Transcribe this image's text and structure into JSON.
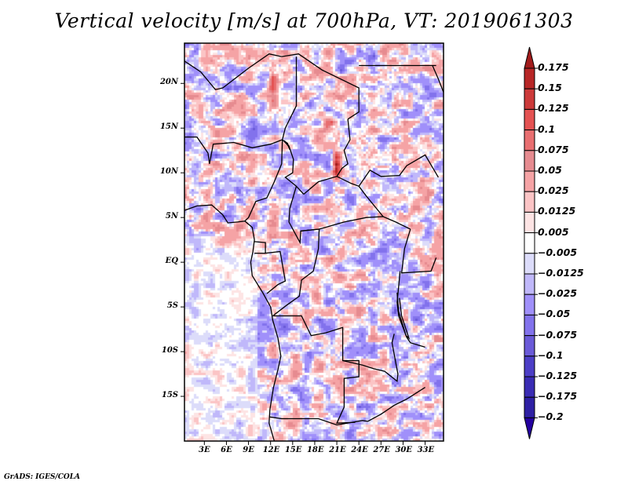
{
  "chart_data": {
    "type": "heatmap",
    "title": "Vertical velocity [m/s] at 700hPa, VT: 2019061303",
    "variable": "Vertical velocity",
    "units": "m/s",
    "level": "700hPa",
    "valid_time": "2019061303",
    "xlabel": "",
    "ylabel": "",
    "x_ticks": [
      "3E",
      "6E",
      "9E",
      "12E",
      "15E",
      "18E",
      "21E",
      "24E",
      "27E",
      "30E",
      "33E"
    ],
    "x_tick_values": [
      3,
      6,
      9,
      12,
      15,
      18,
      21,
      24,
      27,
      30,
      33
    ],
    "y_ticks": [
      "20N",
      "15N",
      "10N",
      "5N",
      "EQ",
      "5S",
      "10S",
      "15S"
    ],
    "y_tick_values": [
      20,
      15,
      10,
      5,
      0,
      -5,
      -10,
      -15
    ],
    "xlim": [
      0.3,
      35.5
    ],
    "ylim": [
      -20,
      24.5
    ],
    "colorbar": {
      "placement": "right",
      "orientation": "vertical",
      "extend": "both",
      "levels": [
        0.175,
        0.15,
        0.125,
        0.1,
        0.075,
        0.05,
        0.025,
        0.0125,
        0.005,
        -0.005,
        -0.0125,
        -0.025,
        -0.05,
        -0.075,
        -0.1,
        -0.125,
        -0.175,
        -0.2
      ],
      "level_labels": [
        "0.175",
        "0.15",
        "0.125",
        "0.1",
        "0.075",
        "0.05",
        "0.025",
        "0.0125",
        "0.005",
        "−0.005",
        "−0.0125",
        "−0.025",
        "−0.05",
        "−0.075",
        "−0.1",
        "−0.125",
        "−0.175",
        "−0.2"
      ],
      "colors": [
        "#a21c1c",
        "#b72626",
        "#cc3a3a",
        "#e45252",
        "#e86e70",
        "#e68b90",
        "#f5a3a5",
        "#fbc4c5",
        "#fde4e4",
        "#ffffff",
        "#dcdcfa",
        "#c0b8fa",
        "#a090fa",
        "#8272ec",
        "#6a5ad8",
        "#4c3ec6",
        "#3a2cb4",
        "#2e20a4",
        "#2400a0"
      ]
    },
    "description": "Gridded field over Central Africa (approx. 0-35E, 20S-24N) with mixed ascent (red) and descent (blue); strongest ascent streaks near Lake Chad/South Sudan and the Gulf of Guinea coast; country borders overlaid."
  },
  "footer": {
    "credit": "GrADS: IGES/COLA"
  }
}
